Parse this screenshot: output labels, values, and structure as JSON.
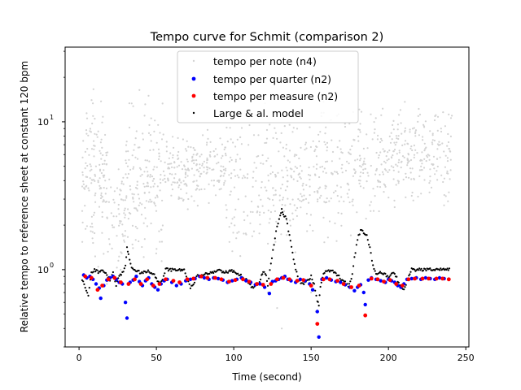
{
  "chart_data": {
    "type": "scatter",
    "title": "Tempo curve for Schmit (comparison 2)",
    "xlabel": "Time (second)",
    "ylabel": "Relative tempo to reference sheet at constant 120 bpm",
    "xlim": [
      -9,
      252
    ],
    "ylim": [
      0.3,
      32
    ],
    "yscale": "log",
    "grid": false,
    "legend_position": "top-center",
    "x_ticks": [
      0,
      50,
      100,
      150,
      200,
      250
    ],
    "x_tick_labels": [
      "0",
      "50",
      "100",
      "150",
      "200",
      "250"
    ],
    "y_ticks": [
      1,
      10
    ],
    "y_tick_labels": [
      "10^0",
      "10^1"
    ],
    "series": [
      {
        "name": "tempo per note (n4)",
        "color": "#d3d3d3",
        "marker": "small-dot",
        "description_of_points": "densely scattered, mostly between ~1 and ~20, clusters around 5 in sections 55-90, 150-180, 200-240",
        "clusters": [
          {
            "x_range": [
              2,
              20
            ],
            "y_range": [
              0.9,
              18
            ],
            "n": 140
          },
          {
            "x_range": [
              20,
              30
            ],
            "y_range": [
              0.9,
              6
            ],
            "n": 50
          },
          {
            "x_range": [
              30,
              55
            ],
            "y_range": [
              1.0,
              17
            ],
            "n": 160
          },
          {
            "x_range": [
              55,
              95
            ],
            "y_range": [
              2.5,
              9
            ],
            "n": 200
          },
          {
            "x_range": [
              95,
              125
            ],
            "y_range": [
              1.0,
              17
            ],
            "n": 120
          },
          {
            "x_range": [
              125,
              150
            ],
            "y_range": [
              1.3,
              12
            ],
            "n": 120
          },
          {
            "x_range": [
              150,
              180
            ],
            "y_range": [
              1.5,
              17
            ],
            "n": 130
          },
          {
            "x_range": [
              180,
              200
            ],
            "y_range": [
              1.8,
              15
            ],
            "n": 90
          },
          {
            "x_range": [
              200,
              242
            ],
            "y_range": [
              2.5,
              14
            ],
            "n": 210
          }
        ],
        "outliers": [
          [
            122,
            0.7
          ],
          [
            128,
            0.55
          ],
          [
            131,
            0.4
          ],
          [
            150,
            0.7
          ],
          [
            153,
            0.52
          ],
          [
            18,
            0.8
          ],
          [
            241,
            11
          ]
        ]
      },
      {
        "name": "tempo per quarter (n2)",
        "color": "#0000ff",
        "marker": "dot",
        "points": [
          [
            3,
            0.92
          ],
          [
            5,
            0.88
          ],
          [
            7,
            0.9
          ],
          [
            9,
            0.86
          ],
          [
            11,
            0.8
          ],
          [
            13,
            0.75
          ],
          [
            14,
            0.64
          ],
          [
            16,
            0.78
          ],
          [
            18,
            0.85
          ],
          [
            20,
            0.88
          ],
          [
            22,
            0.9
          ],
          [
            24,
            0.86
          ],
          [
            26,
            0.82
          ],
          [
            28,
            0.8
          ],
          [
            30,
            0.6
          ],
          [
            31,
            0.47
          ],
          [
            33,
            0.82
          ],
          [
            35,
            0.85
          ],
          [
            37,
            0.9
          ],
          [
            39,
            0.83
          ],
          [
            41,
            0.78
          ],
          [
            43,
            0.84
          ],
          [
            45,
            0.88
          ],
          [
            47,
            0.8
          ],
          [
            49,
            0.76
          ],
          [
            51,
            0.73
          ],
          [
            53,
            0.8
          ],
          [
            55,
            0.84
          ],
          [
            57,
            0.86
          ],
          [
            60,
            0.82
          ],
          [
            63,
            0.78
          ],
          [
            66,
            0.8
          ],
          [
            69,
            0.84
          ],
          [
            72,
            0.86
          ],
          [
            75,
            0.87
          ],
          [
            78,
            0.9
          ],
          [
            81,
            0.88
          ],
          [
            84,
            0.86
          ],
          [
            87,
            0.88
          ],
          [
            90,
            0.87
          ],
          [
            93,
            0.85
          ],
          [
            96,
            0.82
          ],
          [
            99,
            0.84
          ],
          [
            102,
            0.86
          ],
          [
            105,
            0.88
          ],
          [
            108,
            0.84
          ],
          [
            111,
            0.82
          ],
          [
            114,
            0.79
          ],
          [
            117,
            0.8
          ],
          [
            120,
            0.76
          ],
          [
            123,
            0.69
          ],
          [
            125,
            0.83
          ],
          [
            127,
            0.84
          ],
          [
            129,
            0.86
          ],
          [
            131,
            0.88
          ],
          [
            133,
            0.9
          ],
          [
            135,
            0.86
          ],
          [
            137,
            0.84
          ],
          [
            140,
            0.82
          ],
          [
            143,
            0.86
          ],
          [
            146,
            0.84
          ],
          [
            149,
            0.8
          ],
          [
            151,
            0.73
          ],
          [
            154,
            0.52
          ],
          [
            155,
            0.35
          ],
          [
            157,
            0.86
          ],
          [
            160,
            0.88
          ],
          [
            163,
            0.85
          ],
          [
            166,
            0.83
          ],
          [
            169,
            0.82
          ],
          [
            172,
            0.79
          ],
          [
            175,
            0.76
          ],
          [
            178,
            0.72
          ],
          [
            180,
            0.76
          ],
          [
            182,
            0.79
          ],
          [
            184,
            0.7
          ],
          [
            185,
            0.58
          ],
          [
            187,
            0.85
          ],
          [
            189,
            0.88
          ],
          [
            192,
            0.86
          ],
          [
            195,
            0.84
          ],
          [
            198,
            0.82
          ],
          [
            200,
            0.86
          ],
          [
            202,
            0.84
          ],
          [
            204,
            0.82
          ],
          [
            206,
            0.78
          ],
          [
            208,
            0.76
          ],
          [
            210,
            0.8
          ],
          [
            212,
            0.86
          ],
          [
            215,
            0.87
          ],
          [
            218,
            0.88
          ],
          [
            221,
            0.86
          ],
          [
            224,
            0.88
          ],
          [
            227,
            0.87
          ],
          [
            230,
            0.86
          ],
          [
            233,
            0.88
          ],
          [
            236,
            0.87
          ],
          [
            239,
            0.86
          ]
        ]
      },
      {
        "name": "tempo per measure (n2)",
        "color": "#ff0000",
        "marker": "dot",
        "points": [
          [
            4,
            0.9
          ],
          [
            8,
            0.88
          ],
          [
            12,
            0.73
          ],
          [
            15,
            0.78
          ],
          [
            19,
            0.86
          ],
          [
            23,
            0.88
          ],
          [
            27,
            0.82
          ],
          [
            32,
            0.8
          ],
          [
            36,
            0.86
          ],
          [
            40,
            0.8
          ],
          [
            44,
            0.86
          ],
          [
            48,
            0.78
          ],
          [
            52,
            0.8
          ],
          [
            56,
            0.86
          ],
          [
            61,
            0.84
          ],
          [
            65,
            0.82
          ],
          [
            70,
            0.86
          ],
          [
            74,
            0.87
          ],
          [
            79,
            0.9
          ],
          [
            83,
            0.88
          ],
          [
            88,
            0.88
          ],
          [
            92,
            0.86
          ],
          [
            97,
            0.83
          ],
          [
            101,
            0.85
          ],
          [
            106,
            0.86
          ],
          [
            110,
            0.83
          ],
          [
            115,
            0.8
          ],
          [
            119,
            0.79
          ],
          [
            124,
            0.8
          ],
          [
            128,
            0.86
          ],
          [
            132,
            0.88
          ],
          [
            136,
            0.86
          ],
          [
            141,
            0.84
          ],
          [
            145,
            0.85
          ],
          [
            150,
            0.78
          ],
          [
            154,
            0.43
          ],
          [
            158,
            0.86
          ],
          [
            162,
            0.86
          ],
          [
            167,
            0.84
          ],
          [
            171,
            0.8
          ],
          [
            176,
            0.76
          ],
          [
            181,
            0.78
          ],
          [
            185,
            0.49
          ],
          [
            189,
            0.87
          ],
          [
            193,
            0.86
          ],
          [
            197,
            0.83
          ],
          [
            201,
            0.85
          ],
          [
            205,
            0.8
          ],
          [
            209,
            0.78
          ],
          [
            213,
            0.86
          ],
          [
            217,
            0.87
          ],
          [
            222,
            0.87
          ],
          [
            226,
            0.87
          ],
          [
            231,
            0.87
          ],
          [
            235,
            0.87
          ],
          [
            239,
            0.86
          ]
        ]
      },
      {
        "name": "Large & al. model",
        "color": "#000000",
        "marker": "small-dot",
        "curve": [
          [
            2,
            0.86
          ],
          [
            4,
            0.75
          ],
          [
            6,
            0.68
          ],
          [
            8,
            0.95
          ],
          [
            10,
            1.0
          ],
          [
            13,
            0.96
          ],
          [
            16,
            0.98
          ],
          [
            18,
            0.92
          ],
          [
            20,
            0.85
          ],
          [
            22,
            0.95
          ],
          [
            24,
            0.78
          ],
          [
            26,
            0.9
          ],
          [
            28,
            0.95
          ],
          [
            30,
            1.05
          ],
          [
            31,
            1.4
          ],
          [
            32,
            1.25
          ],
          [
            34,
            1.05
          ],
          [
            36,
            1.0
          ],
          [
            40,
            0.95
          ],
          [
            44,
            0.98
          ],
          [
            48,
            0.95
          ],
          [
            50,
            0.88
          ],
          [
            52,
            0.8
          ],
          [
            54,
            0.85
          ],
          [
            56,
            1.0
          ],
          [
            62,
            1.0
          ],
          [
            68,
            1.0
          ],
          [
            70,
            0.85
          ],
          [
            72,
            0.75
          ],
          [
            74,
            0.8
          ],
          [
            76,
            0.9
          ],
          [
            80,
            0.92
          ],
          [
            85,
            0.95
          ],
          [
            90,
            0.98
          ],
          [
            95,
            0.96
          ],
          [
            100,
            0.98
          ],
          [
            104,
            0.92
          ],
          [
            108,
            0.85
          ],
          [
            110,
            0.8
          ],
          [
            112,
            0.75
          ],
          [
            114,
            0.78
          ],
          [
            116,
            0.8
          ],
          [
            118,
            0.9
          ],
          [
            119,
            0.98
          ],
          [
            121,
            0.9
          ],
          [
            122,
            0.78
          ],
          [
            124,
            1.1
          ],
          [
            126,
            1.5
          ],
          [
            128,
            2.0
          ],
          [
            130,
            2.3
          ],
          [
            131,
            2.6
          ],
          [
            132,
            2.4
          ],
          [
            134,
            2.2
          ],
          [
            136,
            1.7
          ],
          [
            138,
            1.3
          ],
          [
            140,
            1.0
          ],
          [
            142,
            0.85
          ],
          [
            144,
            0.8
          ],
          [
            146,
            0.82
          ],
          [
            148,
            0.84
          ],
          [
            150,
            0.9
          ],
          [
            152,
            0.8
          ],
          [
            154,
            0.62
          ],
          [
            155,
            0.58
          ],
          [
            156,
            0.75
          ],
          [
            158,
            0.95
          ],
          [
            162,
            0.98
          ],
          [
            166,
            0.95
          ],
          [
            170,
            0.85
          ],
          [
            174,
            0.78
          ],
          [
            176,
            0.85
          ],
          [
            178,
            1.2
          ],
          [
            180,
            1.6
          ],
          [
            182,
            1.85
          ],
          [
            184,
            1.8
          ],
          [
            186,
            1.7
          ],
          [
            188,
            1.4
          ],
          [
            190,
            1.05
          ],
          [
            192,
            0.95
          ],
          [
            196,
            0.95
          ],
          [
            200,
            0.9
          ],
          [
            204,
            0.95
          ],
          [
            208,
            0.75
          ],
          [
            210,
            0.72
          ],
          [
            212,
            0.85
          ],
          [
            215,
            1.0
          ],
          [
            220,
            1.0
          ],
          [
            225,
            1.0
          ],
          [
            230,
            1.0
          ],
          [
            235,
            1.0
          ],
          [
            240,
            1.0
          ]
        ]
      }
    ]
  }
}
